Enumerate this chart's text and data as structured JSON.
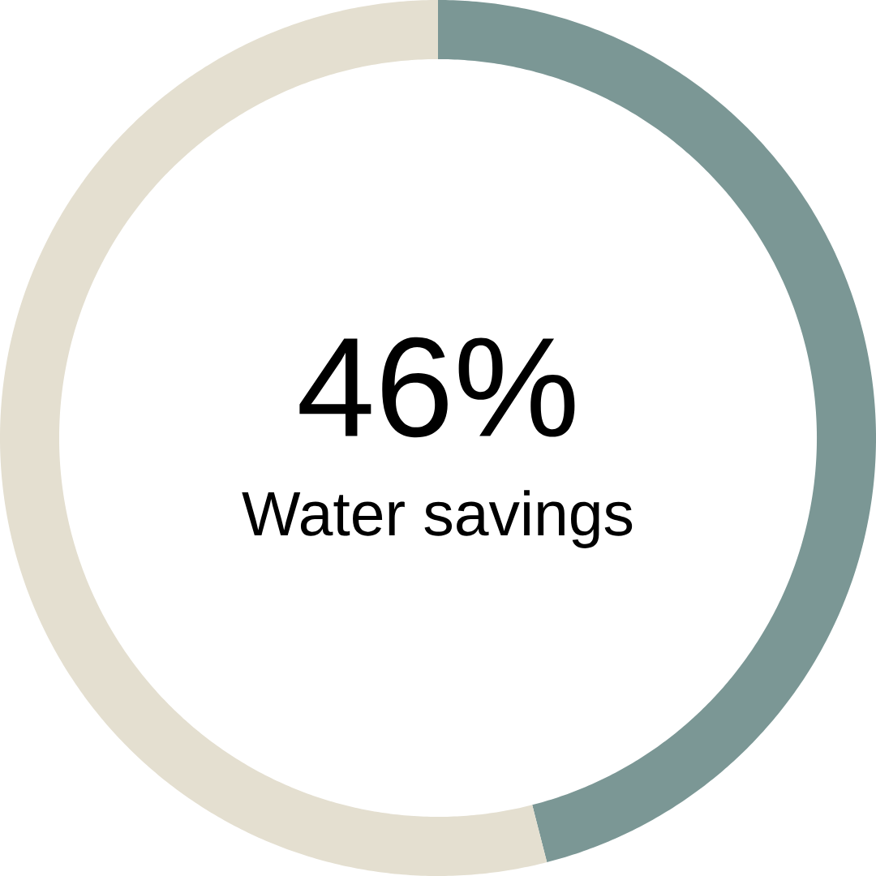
{
  "chart_data": {
    "type": "donut",
    "categories": [
      null,
      null
    ],
    "values": [
      46,
      54
    ],
    "colors": [
      "#7b9795",
      "#e4dfd0"
    ],
    "annotations": [
      "46%",
      "Water savings"
    ]
  }
}
